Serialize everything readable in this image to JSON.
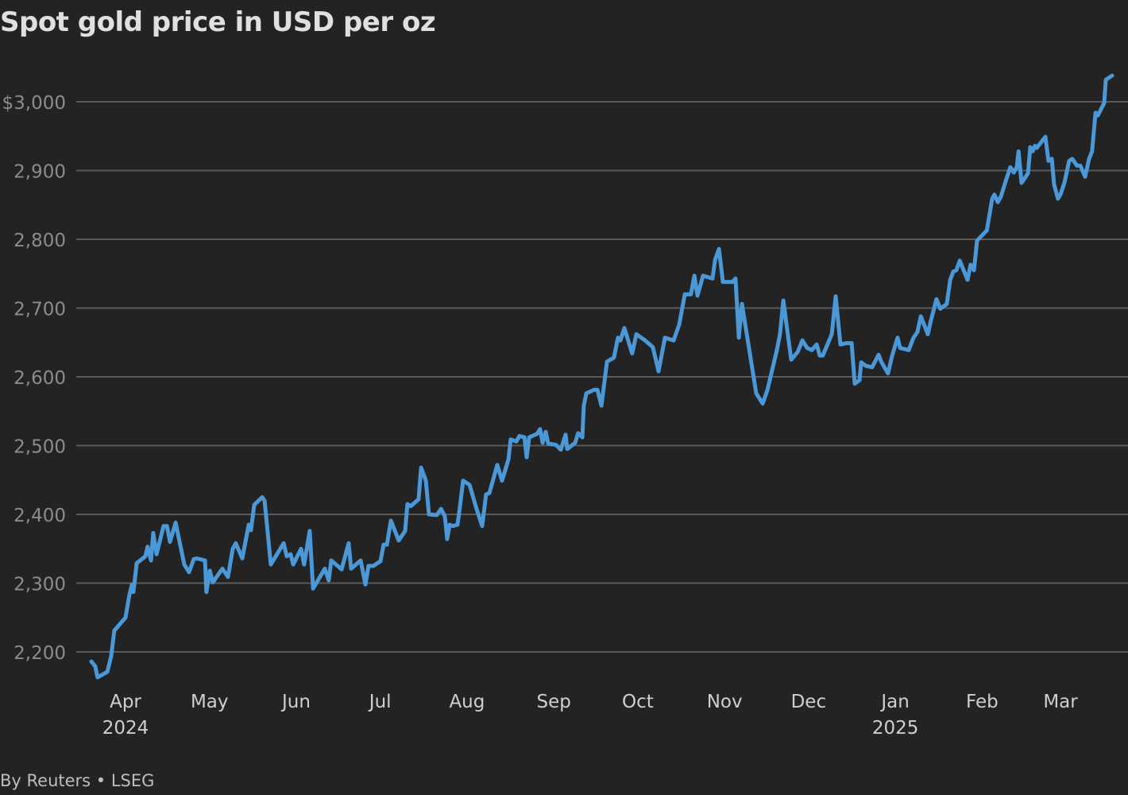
{
  "title": "Spot gold price in USD per oz",
  "source": "By Reuters • LSEG",
  "colors": {
    "background": "#232323",
    "line": "#4a98d8",
    "grid": "#5a5a5a"
  },
  "chart_data": {
    "type": "line",
    "title": "Spot gold price in USD per oz",
    "xlabel": "",
    "ylabel": "",
    "x_unit": "days since 2024-04-01",
    "xlim": [
      -12.2,
      352.4
    ],
    "ylim": [
      2160,
      3045
    ],
    "grid": true,
    "y_ticks": [
      {
        "value": 2200,
        "label": "2,200"
      },
      {
        "value": 2300,
        "label": "2,300"
      },
      {
        "value": 2400,
        "label": "2,400"
      },
      {
        "value": 2500,
        "label": "2,500"
      },
      {
        "value": 2600,
        "label": "2,600"
      },
      {
        "value": 2700,
        "label": "2,700"
      },
      {
        "value": 2800,
        "label": "2,800"
      },
      {
        "value": 2900,
        "label": "2,900"
      },
      {
        "value": 3000,
        "label": "$3,000"
      }
    ],
    "x_ticks": [
      {
        "value": 0,
        "label": "Apr",
        "year": "2024"
      },
      {
        "value": 30,
        "label": "May"
      },
      {
        "value": 61,
        "label": "Jun"
      },
      {
        "value": 91,
        "label": "Jul"
      },
      {
        "value": 122,
        "label": "Aug"
      },
      {
        "value": 153,
        "label": "Sep"
      },
      {
        "value": 183,
        "label": "Oct"
      },
      {
        "value": 214,
        "label": "Nov"
      },
      {
        "value": 244,
        "label": "Dec"
      },
      {
        "value": 275,
        "label": "Jan",
        "year": "2025"
      },
      {
        "value": 306,
        "label": "Feb"
      },
      {
        "value": 334,
        "label": "Mar"
      }
    ],
    "series": [
      {
        "name": "Spot gold",
        "x": [
          -12.2,
          -10.8,
          -10.0,
          -6.5,
          -5.1,
          -4.0,
          0,
          1.4,
          2.3,
          2.8,
          4.0,
          7.1,
          7.9,
          9.1,
          9.9,
          11.1,
          13.6,
          14.8,
          15.9,
          17.9,
          21.0,
          22.7,
          24.4,
          25.5,
          28.4,
          28.9,
          30.1,
          31.2,
          34.6,
          36.6,
          38.3,
          39.4,
          41.7,
          44.0,
          44.8,
          46.0,
          48.8,
          49.7,
          51.9,
          56.5,
          57.6,
          59.0,
          59.9,
          62.7,
          63.8,
          65.8,
          67.0,
          71.2,
          72.6,
          73.5,
          77.2,
          79.7,
          80.6,
          84.0,
          85.7,
          86.8,
          88.5,
          91.1,
          92.2,
          93.4,
          94.8,
          97.6,
          99.9,
          100.7,
          101.9,
          104.7,
          105.6,
          107.3,
          108.4,
          111.2,
          112.7,
          114.1,
          114.9,
          115.8,
          116.9,
          118.6,
          119.5,
          120.6,
          122.9,
          125.4,
          127.4,
          128.8,
          130.0,
          132.8,
          134.5,
          136.8,
          137.6,
          139.6,
          140.7,
          142.5,
          143.3,
          144.2,
          147.0,
          148.1,
          149.0,
          150.1,
          151.0,
          153.8,
          155.5,
          157.2,
          157.8,
          160.6,
          161.7,
          163.2,
          163.7,
          164.6,
          167.4,
          168.6,
          170.0,
          172.0,
          174.5,
          175.9,
          176.8,
          178.2,
          181.0,
          182.5,
          185.6,
          188.4,
          190.4,
          192.7,
          195.8,
          197.8,
          199.8,
          202.0,
          203.2,
          204.3,
          206.3,
          209.7,
          210.6,
          212.0,
          213.4,
          216.8,
          217.9,
          219.1,
          220.2,
          225.3,
          227.6,
          229.3,
          232.7,
          233.8,
          235.0,
          237.8,
          240.1,
          241.8,
          243.5,
          245.2,
          246.9,
          248.0,
          249.1,
          252.3,
          253.7,
          255.4,
          257.7,
          259.4,
          260.5,
          262.2,
          262.8,
          264.5,
          266.7,
          269.0,
          270.1,
          272.4,
          273.8,
          275.8,
          276.7,
          279.8,
          281.5,
          282.9,
          284.1,
          286.6,
          287.7,
          289.7,
          291.1,
          293.4,
          294.6,
          295.7,
          296.8,
          298.0,
          300.8,
          301.9,
          303.1,
          304.2,
          307.7,
          309.6,
          310.4,
          311.6,
          312.7,
          314.4,
          316.1,
          317.3,
          318.4,
          319.0,
          320.1,
          322.4,
          323.2,
          324.1,
          324.9,
          325.5,
          328.6,
          329.7,
          330.9,
          331.7,
          333.1,
          334.0,
          335.4,
          337.1,
          338.2,
          339.9,
          341.1,
          342.8,
          344.2,
          345.3,
          346.5,
          347.3,
          349.6,
          350.2,
          352.4
        ],
        "values": [
          2186,
          2179,
          2163,
          2171,
          2194,
          2231,
          2250,
          2283,
          2298,
          2287,
          2329,
          2339,
          2353,
          2333,
          2373,
          2342,
          2383,
          2383,
          2360,
          2388,
          2327,
          2316,
          2335,
          2336,
          2333,
          2287,
          2318,
          2301,
          2321,
          2309,
          2350,
          2358,
          2336,
          2385,
          2377,
          2414,
          2425,
          2420,
          2327,
          2358,
          2339,
          2342,
          2327,
          2350,
          2327,
          2376,
          2292,
          2321,
          2304,
          2333,
          2320,
          2358,
          2321,
          2333,
          2298,
          2325,
          2325,
          2332,
          2356,
          2356,
          2391,
          2362,
          2376,
          2415,
          2412,
          2422,
          2468,
          2449,
          2400,
          2399,
          2408,
          2397,
          2364,
          2385,
          2383,
          2385,
          2412,
          2449,
          2443,
          2408,
          2383,
          2429,
          2431,
          2472,
          2449,
          2480,
          2509,
          2506,
          2514,
          2512,
          2483,
          2512,
          2517,
          2524,
          2504,
          2520,
          2503,
          2501,
          2494,
          2516,
          2495,
          2504,
          2518,
          2512,
          2558,
          2576,
          2581,
          2581,
          2558,
          2622,
          2628,
          2657,
          2653,
          2671,
          2634,
          2662,
          2653,
          2643,
          2608,
          2657,
          2653,
          2676,
          2720,
          2720,
          2747,
          2718,
          2747,
          2743,
          2770,
          2786,
          2738,
          2738,
          2743,
          2657,
          2706,
          2576,
          2561,
          2581,
          2639,
          2662,
          2711,
          2625,
          2636,
          2653,
          2642,
          2639,
          2647,
          2631,
          2631,
          2662,
          2717,
          2647,
          2649,
          2649,
          2590,
          2595,
          2621,
          2616,
          2614,
          2632,
          2621,
          2605,
          2630,
          2657,
          2642,
          2639,
          2657,
          2665,
          2688,
          2662,
          2682,
          2713,
          2699,
          2706,
          2741,
          2753,
          2755,
          2769,
          2741,
          2763,
          2755,
          2798,
          2813,
          2859,
          2865,
          2854,
          2862,
          2884,
          2905,
          2897,
          2905,
          2928,
          2882,
          2896,
          2934,
          2928,
          2936,
          2933,
          2949,
          2914,
          2917,
          2880,
          2859,
          2865,
          2882,
          2914,
          2917,
          2907,
          2907,
          2891,
          2917,
          2928,
          2984,
          2980,
          2998,
          3032,
          3038
        ]
      }
    ]
  }
}
